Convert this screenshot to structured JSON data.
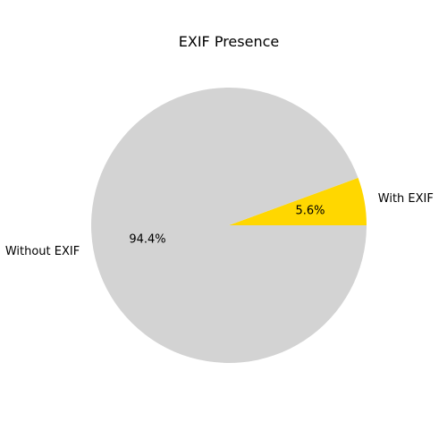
{
  "chart_data": {
    "type": "pie",
    "title": "EXIF Presence",
    "labels": [
      "With EXIF",
      "Without EXIF"
    ],
    "values": [
      5.6,
      94.4
    ],
    "value_labels": [
      "5.6%",
      "94.4%"
    ],
    "colors": [
      "#ffd700",
      "#d3d3d3"
    ],
    "start_angle": 0,
    "direction": "counterclockwise",
    "legend": "none"
  }
}
